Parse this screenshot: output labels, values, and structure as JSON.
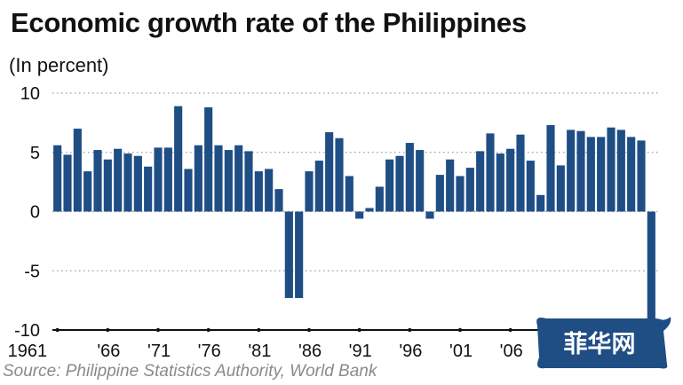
{
  "chart_data": {
    "type": "bar",
    "title": "Economic growth rate of the Philippines",
    "subtitle": "(In percent)",
    "source": "Source: Philippine Statistics Authority, World Bank",
    "xlabel": "",
    "ylabel": "",
    "ylim": [
      -10,
      10
    ],
    "yticks": [
      {
        "value": 10,
        "label": "10"
      },
      {
        "value": 5,
        "label": "5"
      },
      {
        "value": 0,
        "label": "0"
      },
      {
        "value": -5,
        "label": "-5"
      },
      {
        "value": -10,
        "label": "-10"
      }
    ],
    "grid": "horizontal dotted",
    "bar_color": "#1f4e85",
    "categories": [
      1961,
      1962,
      1963,
      1964,
      1965,
      1966,
      1967,
      1968,
      1969,
      1970,
      1971,
      1972,
      1973,
      1974,
      1975,
      1976,
      1977,
      1978,
      1979,
      1980,
      1981,
      1982,
      1983,
      1984,
      1985,
      1986,
      1987,
      1988,
      1989,
      1990,
      1991,
      1992,
      1993,
      1994,
      1995,
      1996,
      1997,
      1998,
      1999,
      2000,
      2001,
      2002,
      2003,
      2004,
      2005,
      2006,
      2007,
      2008,
      2009,
      2010,
      2011,
      2012,
      2013,
      2014,
      2015,
      2016,
      2017,
      2018,
      2019,
      2020
    ],
    "values": [
      5.6,
      4.8,
      7.0,
      3.4,
      5.2,
      4.4,
      5.3,
      4.9,
      4.7,
      3.8,
      5.4,
      5.4,
      8.9,
      3.6,
      5.6,
      8.8,
      5.6,
      5.2,
      5.6,
      5.1,
      3.4,
      3.6,
      1.9,
      -7.3,
      -7.3,
      3.4,
      4.3,
      6.7,
      6.2,
      3.0,
      -0.6,
      0.3,
      2.1,
      4.4,
      4.7,
      5.8,
      5.2,
      -0.6,
      3.1,
      4.4,
      3.0,
      3.7,
      5.1,
      6.6,
      4.9,
      5.3,
      6.5,
      4.3,
      1.4,
      7.3,
      3.9,
      6.9,
      6.8,
      6.3,
      6.3,
      7.1,
      6.9,
      6.3,
      6.0,
      -9.6
    ],
    "xtick_labels": [
      {
        "year": 1961,
        "label": "1961"
      },
      {
        "year": 1966,
        "label": "'66"
      },
      {
        "year": 1971,
        "label": "'71"
      },
      {
        "year": 1976,
        "label": "'76"
      },
      {
        "year": 1981,
        "label": "'81"
      },
      {
        "year": 1986,
        "label": "'86"
      },
      {
        "year": 1991,
        "label": "'91"
      },
      {
        "year": 1996,
        "label": "'96"
      },
      {
        "year": 2001,
        "label": "'01"
      },
      {
        "year": 2006,
        "label": "'06"
      }
    ],
    "watermark": "菲华网"
  }
}
